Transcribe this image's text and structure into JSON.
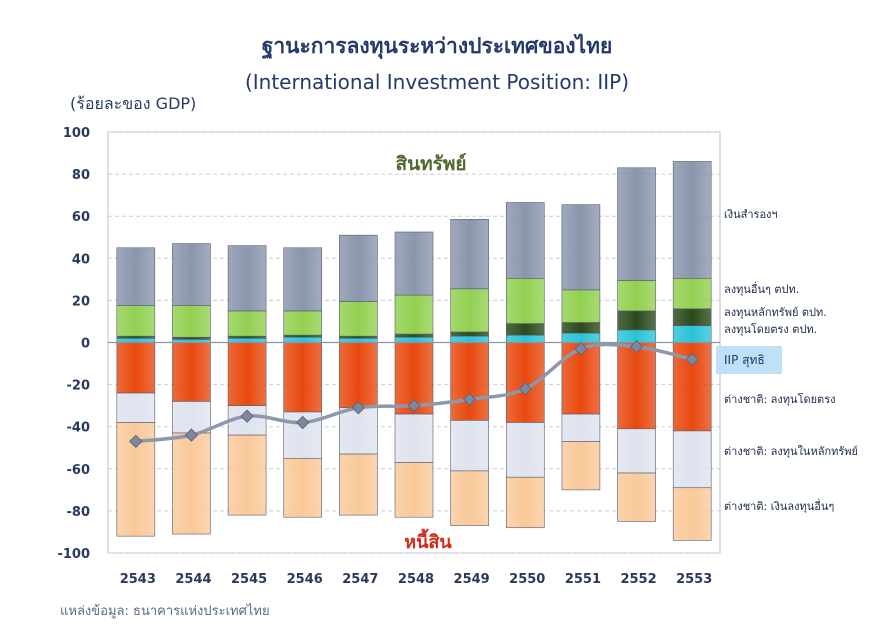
{
  "title": "ฐานะการลงทุนระหว่างประเทศของไทย",
  "subtitle": "(International Investment Position: IIP)",
  "unit_label": "(ร้อยละของ GDP)",
  "source": "แหล่งข้อมูล: ธนาคารแห่งประเทศไทย",
  "colors": {
    "reserves": "#8a96ad",
    "other_inv_assets": "#92d050",
    "portfolio_assets": "#2b4a1c",
    "fdi_assets": "#29c4d6",
    "fdi_liab": "#e8490f",
    "portfolio_liab": "#dfe3ee",
    "other_liab": "#fac99a",
    "iip_line": "#8e98ab"
  },
  "chart_data": {
    "type": "bar",
    "stacked": true,
    "title": "ฐานะการลงทุนระหว่างประเทศของไทย",
    "subtitle": "(International Investment Position: IIP)",
    "ylabel": "(ร้อยละของ GDP)",
    "ylim": [
      -100,
      100
    ],
    "yticks": [
      "100",
      "80",
      "60",
      "40",
      "20",
      "0",
      "-20",
      "-40",
      "-60",
      "-80",
      "-100"
    ],
    "categories": [
      "2543",
      "2544",
      "2545",
      "2546",
      "2547",
      "2548",
      "2549",
      "2550",
      "2551",
      "2552",
      "2553"
    ],
    "group_labels": {
      "assets": "สินทรัพย์",
      "liabilities": "หนี้สิน"
    },
    "grid": true,
    "series": [
      {
        "name": "ลงทุนโดยตรง ตปท.",
        "key": "fdi_assets",
        "group": "assets",
        "values": [
          2,
          1.5,
          2,
          2.5,
          2,
          2.5,
          3,
          3.5,
          4.5,
          6,
          8
        ]
      },
      {
        "name": "ลงทุนหลักทรัพย์ ตปท.",
        "key": "portfolio_assets",
        "group": "assets",
        "values": [
          1,
          1,
          1,
          1,
          1,
          1.5,
          2,
          5.5,
          5,
          9,
          8
        ]
      },
      {
        "name": "ลงทุนอื่นๆ ตปท.",
        "key": "other_inv_assets",
        "group": "assets",
        "values": [
          14.5,
          15,
          12,
          11.5,
          16.5,
          18.5,
          20.5,
          21.5,
          15.5,
          14.5,
          14.5
        ]
      },
      {
        "name": "เงินสำรองฯ",
        "key": "reserves",
        "group": "assets",
        "values": [
          27.5,
          29.5,
          31,
          30,
          31.5,
          30,
          33,
          36,
          40.5,
          53.5,
          55.5
        ]
      },
      {
        "name": "ต่างชาติ: ลงทุนโดยตรง",
        "key": "fdi_liab",
        "group": "liabilities",
        "values": [
          -24,
          -28,
          -30,
          -33,
          -31,
          -34,
          -37,
          -38,
          -34,
          -41,
          -42
        ]
      },
      {
        "name": "ต่างชาติ: ลงทุนในหลักทรัพย์",
        "key": "portfolio_liab",
        "group": "liabilities",
        "values": [
          -14,
          -15,
          -14,
          -22,
          -22,
          -23,
          -24,
          -26,
          -13,
          -21,
          -27
        ]
      },
      {
        "name": "ต่างชาติ: เงินลงทุนอื่นๆ",
        "key": "other_liab",
        "group": "liabilities",
        "values": [
          -54,
          -48,
          -38,
          -28,
          -29,
          -26,
          -26,
          -24,
          -23,
          -23,
          -25
        ]
      }
    ],
    "line": {
      "name": "IIP สุทธิ",
      "key": "iip_line",
      "values": [
        -47,
        -44,
        -35,
        -38,
        -31,
        -30,
        -27,
        -22,
        -3,
        -2,
        -8
      ]
    }
  }
}
